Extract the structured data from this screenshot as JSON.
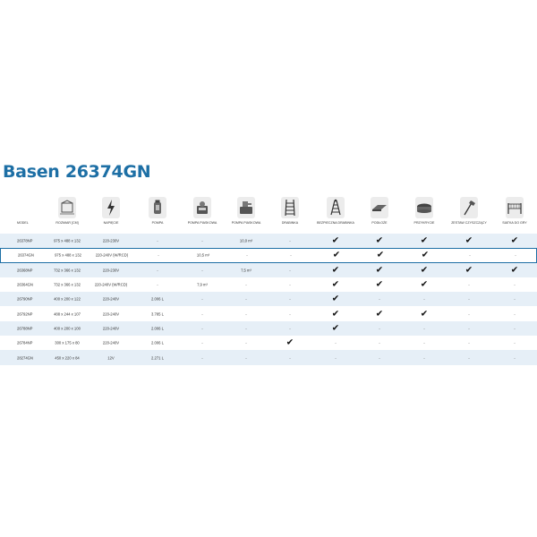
{
  "title": "Basen 26374GN",
  "icons": [
    "ruler-box-icon",
    "lightning-icon",
    "filter-pump-icon",
    "sand-pump-icon",
    "sand-pump-2-icon",
    "ladder-icon",
    "safety-ladder-icon",
    "ground-cloth-icon",
    "pool-cover-icon",
    "cleaning-kit-icon",
    "game-net-icon"
  ],
  "headers": [
    "MODEL",
    "ROZMIAR [CM]",
    "NAPIĘCIE",
    "POMPA",
    "POMPA PIASKOWA",
    "POMPA PIASKOWA",
    "DRABINKA",
    "BEZPIECZNA DRABINKA",
    "PODŁOŻE",
    "PRZYKRYCIE",
    "ZESTAW CZYSZCZĄCY",
    "SIATKA DO GRY"
  ],
  "rows": [
    {
      "model": "26378NP",
      "size": "975 x 488 x 132",
      "voltage": "220-230V",
      "pump": "-",
      "sand1": "-",
      "sand2": "10,0 m³",
      "ladder": "-",
      "safe_ladder": "✔",
      "ground": "✔",
      "cover": "✔",
      "cleaning": "✔",
      "net": "✔"
    },
    {
      "model": "26374GN",
      "size": "975 x 488 x 132",
      "voltage": "220-240V (W/RCD)",
      "pump": "-",
      "sand1": "10,5 m³",
      "sand2": "-",
      "ladder": "-",
      "safe_ladder": "✔",
      "ground": "✔",
      "cover": "✔",
      "cleaning": "-",
      "net": "-"
    },
    {
      "model": "26368NP",
      "size": "732 x 366 x 132",
      "voltage": "220-230V",
      "pump": "-",
      "sand1": "-",
      "sand2": "7,5 m³",
      "ladder": "-",
      "safe_ladder": "✔",
      "ground": "✔",
      "cover": "✔",
      "cleaning": "✔",
      "net": "✔"
    },
    {
      "model": "26364GN",
      "size": "732 x 366 x 132",
      "voltage": "220-240V (W/RCD)",
      "pump": "-",
      "sand1": "7,9 m³",
      "sand2": "-",
      "ladder": "-",
      "safe_ladder": "✔",
      "ground": "✔",
      "cover": "✔",
      "cleaning": "-",
      "net": "-"
    },
    {
      "model": "26790NP",
      "size": "400 x 200 x 122",
      "voltage": "220-240V",
      "pump": "2.006 L",
      "sand1": "-",
      "sand2": "-",
      "ladder": "-",
      "safe_ladder": "✔",
      "ground": "-",
      "cover": "-",
      "cleaning": "-",
      "net": "-"
    },
    {
      "model": "26792NP",
      "size": "488 x 244 x 107",
      "voltage": "220-240V",
      "pump": "3.785 L",
      "sand1": "-",
      "sand2": "-",
      "ladder": "-",
      "safe_ladder": "✔",
      "ground": "✔",
      "cover": "✔",
      "cleaning": "-",
      "net": "-"
    },
    {
      "model": "26788NP",
      "size": "400 x 200 x 100",
      "voltage": "220-240V",
      "pump": "2.006 L",
      "sand1": "-",
      "sand2": "-",
      "ladder": "-",
      "safe_ladder": "✔",
      "ground": "-",
      "cover": "-",
      "cleaning": "-",
      "net": "-"
    },
    {
      "model": "26784NP",
      "size": "300 x 175 x 80",
      "voltage": "220-240V",
      "pump": "2.006 L",
      "sand1": "-",
      "sand2": "-",
      "ladder": "✔",
      "safe_ladder": "-",
      "ground": "-",
      "cover": "-",
      "cleaning": "-",
      "net": "-"
    },
    {
      "model": "28274GN",
      "size": "450 x 220 x 84",
      "voltage": "12V",
      "pump": "2.271 L",
      "sand1": "-",
      "sand2": "-",
      "ladder": "-",
      "safe_ladder": "-",
      "ground": "-",
      "cover": "-",
      "cleaning": "-",
      "net": "-"
    }
  ]
}
